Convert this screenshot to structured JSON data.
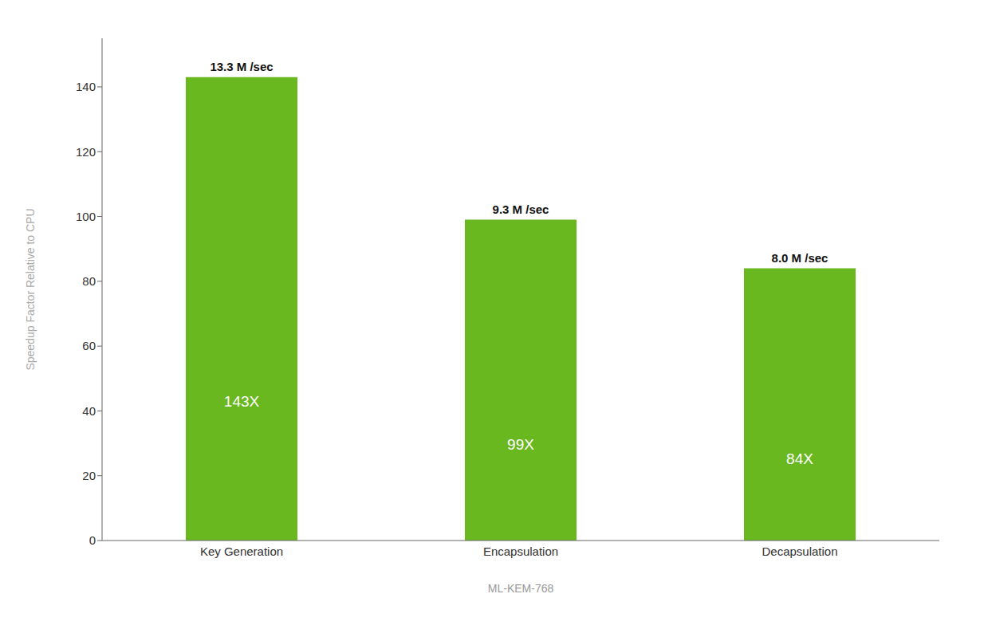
{
  "chart_data": {
    "type": "bar",
    "categories": [
      "Key Generation",
      "Encapsulation",
      "Decapsulation"
    ],
    "values": [
      143,
      99,
      84
    ],
    "value_labels": [
      "143X",
      "99X",
      "84X"
    ],
    "data_labels": true,
    "annotations": [
      "13.3 M /sec",
      "9.3 M /sec",
      "8.0 M /sec"
    ],
    "color": "#6ab820",
    "xlabel": "ML-KEM-768",
    "ylabel": "Speedup Factor Relative to CPU",
    "ylim": [
      0,
      155
    ],
    "yticks": [
      0,
      20,
      40,
      60,
      80,
      100,
      120,
      140
    ],
    "grid": false
  }
}
